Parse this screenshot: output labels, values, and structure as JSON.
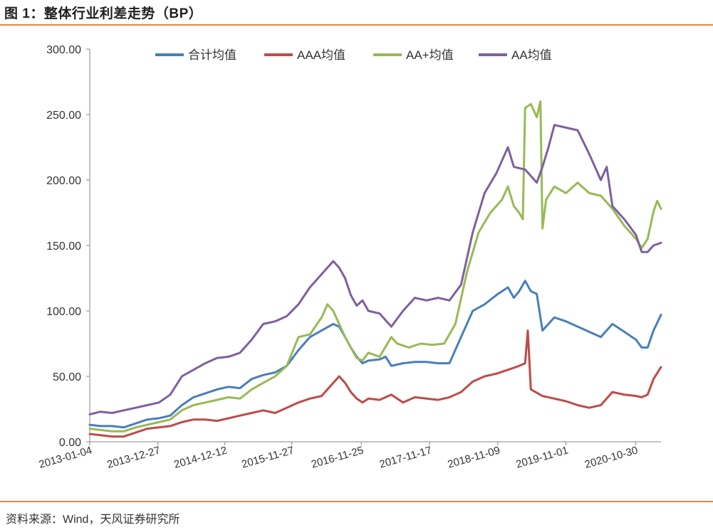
{
  "figure": {
    "title": "图 1：整体行业利差走势（BP）",
    "source": "资料来源：Wind，天风证券研究所"
  },
  "chart_data": {
    "type": "line",
    "title": "",
    "xlabel": "",
    "ylabel": "",
    "ylim": [
      0,
      300
    ],
    "y_ticks": [
      "0.00",
      "50.00",
      "100.00",
      "150.00",
      "200.00",
      "250.00",
      "300.00"
    ],
    "x_ticks": [
      "2013-01-04",
      "2013-12-27",
      "2014-12-12",
      "2015-11-27",
      "2016-11-25",
      "2017-11-17",
      "2018-11-09",
      "2019-11-01",
      "2020-10-30"
    ],
    "x_range": [
      "2013-01-04",
      "2021-03-12"
    ],
    "grid": false,
    "legend": "top",
    "series": [
      {
        "name": "合计均值",
        "color": "#4A7EBB",
        "points": [
          [
            "2013-01-04",
            13
          ],
          [
            "2013-03-01",
            12
          ],
          [
            "2013-05-01",
            12
          ],
          [
            "2013-07-01",
            11
          ],
          [
            "2013-09-01",
            14
          ],
          [
            "2013-11-01",
            17
          ],
          [
            "2014-01-01",
            18
          ],
          [
            "2014-03-01",
            20
          ],
          [
            "2014-05-01",
            28
          ],
          [
            "2014-07-01",
            34
          ],
          [
            "2014-09-01",
            37
          ],
          [
            "2014-11-01",
            40
          ],
          [
            "2015-01-01",
            42
          ],
          [
            "2015-03-01",
            41
          ],
          [
            "2015-05-01",
            48
          ],
          [
            "2015-07-01",
            51
          ],
          [
            "2015-09-01",
            53
          ],
          [
            "2015-11-01",
            58
          ],
          [
            "2016-01-01",
            70
          ],
          [
            "2016-03-01",
            80
          ],
          [
            "2016-05-01",
            85
          ],
          [
            "2016-07-01",
            90
          ],
          [
            "2016-08-01",
            88
          ],
          [
            "2016-09-01",
            80
          ],
          [
            "2016-10-01",
            72
          ],
          [
            "2016-11-01",
            65
          ],
          [
            "2016-12-01",
            60
          ],
          [
            "2017-01-01",
            62
          ],
          [
            "2017-03-01",
            63
          ],
          [
            "2017-04-01",
            65
          ],
          [
            "2017-05-01",
            58
          ],
          [
            "2017-07-01",
            60
          ],
          [
            "2017-09-01",
            61
          ],
          [
            "2017-11-01",
            61
          ],
          [
            "2018-01-01",
            60
          ],
          [
            "2018-03-01",
            60
          ],
          [
            "2018-05-01",
            80
          ],
          [
            "2018-07-01",
            100
          ],
          [
            "2018-09-01",
            105
          ],
          [
            "2018-11-01",
            112
          ],
          [
            "2019-01-01",
            118
          ],
          [
            "2019-02-01",
            110
          ],
          [
            "2019-03-01",
            115
          ],
          [
            "2019-04-01",
            123
          ],
          [
            "2019-05-01",
            115
          ],
          [
            "2019-06-01",
            113
          ],
          [
            "2019-07-01",
            85
          ],
          [
            "2019-09-01",
            95
          ],
          [
            "2019-11-01",
            92
          ],
          [
            "2020-01-01",
            88
          ],
          [
            "2020-03-01",
            84
          ],
          [
            "2020-05-01",
            80
          ],
          [
            "2020-07-01",
            90
          ],
          [
            "2020-09-01",
            84
          ],
          [
            "2020-11-01",
            78
          ],
          [
            "2020-12-01",
            72
          ],
          [
            "2021-01-01",
            72
          ],
          [
            "2021-02-01",
            85
          ],
          [
            "2021-03-12",
            97
          ]
        ]
      },
      {
        "name": "AAA均值",
        "color": "#BE4B48",
        "points": [
          [
            "2013-01-04",
            6
          ],
          [
            "2013-03-01",
            5
          ],
          [
            "2013-05-01",
            4
          ],
          [
            "2013-07-01",
            4
          ],
          [
            "2013-09-01",
            7
          ],
          [
            "2013-11-01",
            10
          ],
          [
            "2014-01-01",
            11
          ],
          [
            "2014-03-01",
            12
          ],
          [
            "2014-05-01",
            15
          ],
          [
            "2014-07-01",
            17
          ],
          [
            "2014-09-01",
            17
          ],
          [
            "2014-11-01",
            16
          ],
          [
            "2015-01-01",
            18
          ],
          [
            "2015-03-01",
            20
          ],
          [
            "2015-05-01",
            22
          ],
          [
            "2015-07-01",
            24
          ],
          [
            "2015-09-01",
            22
          ],
          [
            "2015-11-01",
            26
          ],
          [
            "2016-01-01",
            30
          ],
          [
            "2016-03-01",
            33
          ],
          [
            "2016-05-01",
            35
          ],
          [
            "2016-07-01",
            45
          ],
          [
            "2016-08-01",
            50
          ],
          [
            "2016-09-01",
            45
          ],
          [
            "2016-10-01",
            38
          ],
          [
            "2016-11-01",
            33
          ],
          [
            "2016-12-01",
            30
          ],
          [
            "2017-01-01",
            33
          ],
          [
            "2017-03-01",
            32
          ],
          [
            "2017-05-01",
            36
          ],
          [
            "2017-07-01",
            30
          ],
          [
            "2017-09-01",
            34
          ],
          [
            "2017-11-01",
            33
          ],
          [
            "2018-01-01",
            32
          ],
          [
            "2018-03-01",
            34
          ],
          [
            "2018-05-01",
            38
          ],
          [
            "2018-07-01",
            46
          ],
          [
            "2018-09-01",
            50
          ],
          [
            "2018-11-01",
            52
          ],
          [
            "2019-01-01",
            55
          ],
          [
            "2019-03-01",
            58
          ],
          [
            "2019-04-01",
            60
          ],
          [
            "2019-04-15",
            85
          ],
          [
            "2019-05-01",
            40
          ],
          [
            "2019-07-01",
            35
          ],
          [
            "2019-09-01",
            33
          ],
          [
            "2019-11-01",
            31
          ],
          [
            "2020-01-01",
            28
          ],
          [
            "2020-03-01",
            26
          ],
          [
            "2020-05-01",
            28
          ],
          [
            "2020-07-01",
            38
          ],
          [
            "2020-09-01",
            36
          ],
          [
            "2020-11-01",
            35
          ],
          [
            "2020-12-01",
            34
          ],
          [
            "2021-01-01",
            36
          ],
          [
            "2021-02-01",
            48
          ],
          [
            "2021-03-12",
            57
          ]
        ]
      },
      {
        "name": "AA+均值",
        "color": "#98B954",
        "points": [
          [
            "2013-01-04",
            10
          ],
          [
            "2013-03-01",
            9
          ],
          [
            "2013-05-01",
            8
          ],
          [
            "2013-07-01",
            8
          ],
          [
            "2013-09-01",
            11
          ],
          [
            "2013-11-01",
            13
          ],
          [
            "2014-01-01",
            15
          ],
          [
            "2014-03-01",
            17
          ],
          [
            "2014-05-01",
            24
          ],
          [
            "2014-07-01",
            28
          ],
          [
            "2014-09-01",
            30
          ],
          [
            "2014-11-01",
            32
          ],
          [
            "2015-01-01",
            34
          ],
          [
            "2015-03-01",
            33
          ],
          [
            "2015-05-01",
            40
          ],
          [
            "2015-07-01",
            45
          ],
          [
            "2015-09-01",
            50
          ],
          [
            "2015-11-01",
            58
          ],
          [
            "2016-01-01",
            80
          ],
          [
            "2016-03-01",
            82
          ],
          [
            "2016-05-01",
            95
          ],
          [
            "2016-06-01",
            105
          ],
          [
            "2016-07-01",
            100
          ],
          [
            "2016-08-01",
            90
          ],
          [
            "2016-09-01",
            80
          ],
          [
            "2016-10-01",
            72
          ],
          [
            "2016-11-01",
            64
          ],
          [
            "2016-12-01",
            62
          ],
          [
            "2017-01-01",
            68
          ],
          [
            "2017-03-01",
            65
          ],
          [
            "2017-05-01",
            80
          ],
          [
            "2017-06-01",
            75
          ],
          [
            "2017-08-01",
            72
          ],
          [
            "2017-10-01",
            75
          ],
          [
            "2017-12-01",
            74
          ],
          [
            "2018-02-01",
            75
          ],
          [
            "2018-04-01",
            90
          ],
          [
            "2018-06-01",
            130
          ],
          [
            "2018-08-01",
            160
          ],
          [
            "2018-10-01",
            175
          ],
          [
            "2018-12-01",
            185
          ],
          [
            "2019-01-01",
            195
          ],
          [
            "2019-02-01",
            180
          ],
          [
            "2019-03-01",
            175
          ],
          [
            "2019-03-20",
            170
          ],
          [
            "2019-04-01",
            255
          ],
          [
            "2019-05-01",
            258
          ],
          [
            "2019-06-01",
            248
          ],
          [
            "2019-06-20",
            260
          ],
          [
            "2019-07-01",
            163
          ],
          [
            "2019-07-20",
            185
          ],
          [
            "2019-09-01",
            195
          ],
          [
            "2019-11-01",
            190
          ],
          [
            "2020-01-01",
            198
          ],
          [
            "2020-03-01",
            190
          ],
          [
            "2020-05-01",
            188
          ],
          [
            "2020-07-01",
            178
          ],
          [
            "2020-09-01",
            165
          ],
          [
            "2020-11-01",
            155
          ],
          [
            "2020-12-01",
            148
          ],
          [
            "2021-01-01",
            155
          ],
          [
            "2021-02-01",
            176
          ],
          [
            "2021-02-20",
            184
          ],
          [
            "2021-03-12",
            178
          ]
        ]
      },
      {
        "name": "AA均值",
        "color": "#7D60A0",
        "points": [
          [
            "2013-01-04",
            21
          ],
          [
            "2013-03-01",
            23
          ],
          [
            "2013-05-01",
            22
          ],
          [
            "2013-07-01",
            24
          ],
          [
            "2013-09-01",
            26
          ],
          [
            "2013-11-01",
            28
          ],
          [
            "2014-01-01",
            30
          ],
          [
            "2014-03-01",
            36
          ],
          [
            "2014-05-01",
            50
          ],
          [
            "2014-07-01",
            55
          ],
          [
            "2014-09-01",
            60
          ],
          [
            "2014-11-01",
            64
          ],
          [
            "2015-01-01",
            65
          ],
          [
            "2015-03-01",
            68
          ],
          [
            "2015-05-01",
            78
          ],
          [
            "2015-07-01",
            90
          ],
          [
            "2015-09-01",
            92
          ],
          [
            "2015-11-01",
            96
          ],
          [
            "2016-01-01",
            105
          ],
          [
            "2016-03-01",
            118
          ],
          [
            "2016-05-01",
            128
          ],
          [
            "2016-07-01",
            138
          ],
          [
            "2016-08-01",
            133
          ],
          [
            "2016-09-01",
            125
          ],
          [
            "2016-10-01",
            112
          ],
          [
            "2016-11-01",
            104
          ],
          [
            "2016-12-01",
            108
          ],
          [
            "2017-01-01",
            100
          ],
          [
            "2017-03-01",
            98
          ],
          [
            "2017-05-01",
            88
          ],
          [
            "2017-07-01",
            100
          ],
          [
            "2017-09-01",
            110
          ],
          [
            "2017-11-01",
            108
          ],
          [
            "2018-01-01",
            110
          ],
          [
            "2018-03-01",
            108
          ],
          [
            "2018-05-01",
            120
          ],
          [
            "2018-07-01",
            160
          ],
          [
            "2018-09-01",
            190
          ],
          [
            "2018-11-01",
            205
          ],
          [
            "2019-01-01",
            225
          ],
          [
            "2019-02-01",
            210
          ],
          [
            "2019-04-01",
            208
          ],
          [
            "2019-06-01",
            198
          ],
          [
            "2019-07-01",
            210
          ],
          [
            "2019-08-01",
            225
          ],
          [
            "2019-09-01",
            242
          ],
          [
            "2019-11-01",
            240
          ],
          [
            "2020-01-01",
            238
          ],
          [
            "2020-03-01",
            220
          ],
          [
            "2020-05-01",
            200
          ],
          [
            "2020-06-01",
            210
          ],
          [
            "2020-07-01",
            180
          ],
          [
            "2020-09-01",
            170
          ],
          [
            "2020-11-01",
            158
          ],
          [
            "2020-12-01",
            145
          ],
          [
            "2021-01-01",
            145
          ],
          [
            "2021-02-01",
            150
          ],
          [
            "2021-03-12",
            152
          ]
        ]
      }
    ]
  }
}
